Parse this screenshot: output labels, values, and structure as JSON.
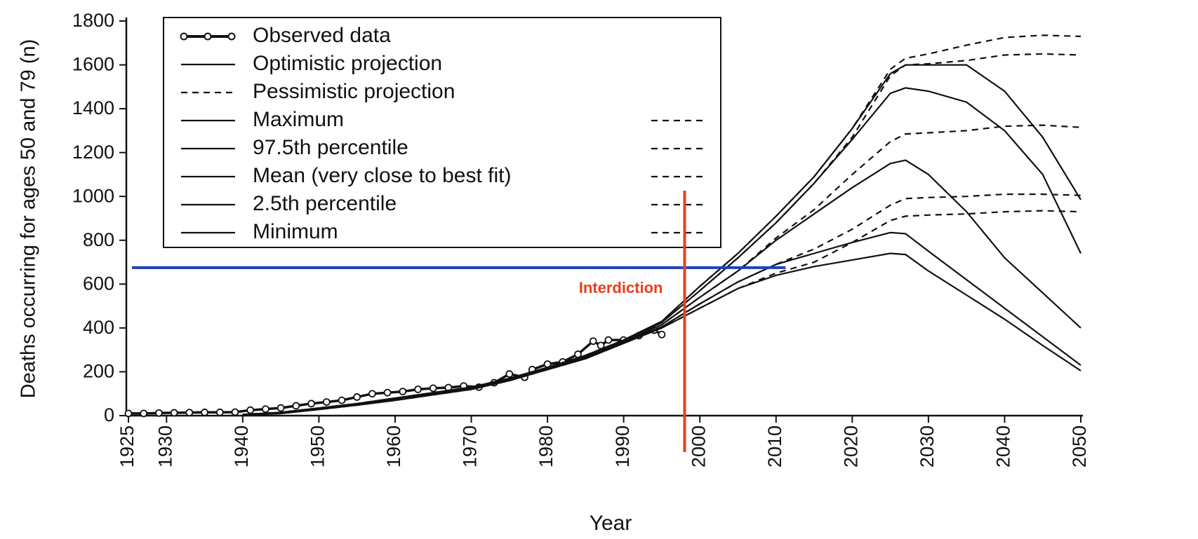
{
  "chart_data": {
    "type": "line",
    "xlabel": "Year",
    "ylabel": "Deaths occurring for ages 50 and 79 (n)",
    "xlim": [
      1925,
      2050
    ],
    "ylim": [
      0,
      1800
    ],
    "xticks": [
      1925,
      1930,
      1940,
      1950,
      1960,
      1970,
      1980,
      1990,
      2000,
      2010,
      2020,
      2030,
      2040,
      2050
    ],
    "yticks": [
      0,
      200,
      400,
      600,
      800,
      1000,
      1200,
      1400,
      1600,
      1800
    ],
    "color": "#111111",
    "legend": [
      "Observed data",
      "Optimistic projection",
      "Pessimistic projection",
      "Maximum",
      "97.5th percentile",
      "Mean (very close to best fit)",
      "2.5th percentile",
      "Minimum"
    ],
    "series": [
      {
        "legend_entry": 0,
        "markers": true,
        "x": [
          1925,
          1927,
          1929,
          1931,
          1933,
          1935,
          1937,
          1939,
          1941,
          1943,
          1945,
          1947,
          1949,
          1951,
          1953,
          1955,
          1957,
          1959,
          1961,
          1963,
          1965,
          1967,
          1969,
          1971,
          1973,
          1975,
          1977,
          1978,
          1980,
          1982,
          1984,
          1986,
          1987,
          1988,
          1990,
          1992,
          1994,
          1995
        ],
        "values": [
          10,
          10,
          12,
          13,
          14,
          15,
          15,
          16,
          25,
          30,
          35,
          45,
          55,
          62,
          70,
          85,
          100,
          105,
          110,
          120,
          125,
          128,
          135,
          130,
          150,
          190,
          175,
          210,
          235,
          245,
          280,
          340,
          320,
          345,
          345,
          365,
          390,
          370
        ]
      },
      {
        "legend_entry": 3,
        "dash": false,
        "x": [
          1940,
          1945,
          1950,
          1955,
          1960,
          1965,
          1970,
          1975,
          1980,
          1985,
          1990,
          1995,
          2000,
          2005,
          2010,
          2015,
          2020,
          2025,
          2027,
          2030,
          2035,
          2040,
          2045,
          2050
        ],
        "values": [
          5,
          15,
          35,
          55,
          80,
          105,
          130,
          170,
          220,
          275,
          345,
          430,
          590,
          740,
          910,
          1090,
          1310,
          1560,
          1600,
          1600,
          1600,
          1480,
          1270,
          985
        ]
      },
      {
        "legend_entry": 3,
        "dash": true,
        "x": [
          1940,
          1945,
          1950,
          1955,
          1960,
          1965,
          1970,
          1975,
          1980,
          1985,
          1990,
          1995,
          2000,
          2005,
          2010,
          2015,
          2020,
          2025,
          2027,
          2030,
          2035,
          2040,
          2045,
          2050
        ],
        "values": [
          5,
          15,
          35,
          55,
          80,
          105,
          130,
          170,
          220,
          275,
          345,
          430,
          590,
          740,
          910,
          1090,
          1310,
          1580,
          1630,
          1650,
          1690,
          1725,
          1735,
          1730
        ]
      },
      {
        "legend_entry": 4,
        "dash": false,
        "x": [
          1940,
          1945,
          1950,
          1955,
          1960,
          1965,
          1970,
          1975,
          1980,
          1985,
          1990,
          1995,
          2000,
          2005,
          2010,
          2015,
          2020,
          2025,
          2027,
          2030,
          2035,
          2040,
          2045,
          2050
        ],
        "values": [
          5,
          14,
          33,
          53,
          78,
          102,
          128,
          168,
          218,
          272,
          340,
          425,
          570,
          720,
          880,
          1060,
          1260,
          1470,
          1495,
          1480,
          1430,
          1300,
          1100,
          740
        ]
      },
      {
        "legend_entry": 4,
        "dash": true,
        "x": [
          1940,
          1945,
          1950,
          1955,
          1960,
          1965,
          1970,
          1975,
          1980,
          1985,
          1990,
          1995,
          2000,
          2005,
          2010,
          2015,
          2020,
          2025,
          2027,
          2030,
          2035,
          2040,
          2045,
          2050
        ],
        "values": [
          5,
          14,
          33,
          53,
          78,
          102,
          128,
          168,
          218,
          272,
          340,
          425,
          570,
          720,
          880,
          1060,
          1270,
          1550,
          1600,
          1605,
          1620,
          1645,
          1650,
          1645
        ]
      },
      {
        "legend_entry": 5,
        "dash": false,
        "x": [
          1940,
          1945,
          1950,
          1955,
          1960,
          1965,
          1970,
          1975,
          1980,
          1985,
          1990,
          1995,
          2000,
          2005,
          2010,
          2015,
          2020,
          2025,
          2027,
          2030,
          2035,
          2040,
          2045,
          2050
        ],
        "values": [
          4,
          12,
          31,
          51,
          75,
          100,
          125,
          165,
          215,
          268,
          335,
          415,
          540,
          660,
          800,
          920,
          1040,
          1150,
          1165,
          1100,
          930,
          720,
          560,
          400
        ]
      },
      {
        "legend_entry": 5,
        "dash": true,
        "x": [
          1940,
          1945,
          1950,
          1955,
          1960,
          1965,
          1970,
          1975,
          1980,
          1985,
          1990,
          1995,
          2000,
          2005,
          2010,
          2015,
          2020,
          2025,
          2027,
          2030,
          2035,
          2040,
          2045,
          2050
        ],
        "values": [
          4,
          12,
          31,
          51,
          75,
          100,
          125,
          165,
          215,
          268,
          335,
          415,
          540,
          660,
          810,
          940,
          1100,
          1250,
          1285,
          1290,
          1300,
          1320,
          1325,
          1315
        ]
      },
      {
        "legend_entry": 6,
        "dash": false,
        "x": [
          1940,
          1945,
          1950,
          1955,
          1960,
          1965,
          1970,
          1975,
          1980,
          1985,
          1990,
          1995,
          2000,
          2005,
          2010,
          2015,
          2020,
          2025,
          2027,
          2030,
          2035,
          2040,
          2045,
          2050
        ],
        "values": [
          3,
          11,
          29,
          49,
          72,
          97,
          122,
          162,
          212,
          263,
          332,
          405,
          510,
          610,
          690,
          740,
          790,
          835,
          830,
          750,
          620,
          490,
          360,
          230
        ]
      },
      {
        "legend_entry": 6,
        "dash": true,
        "x": [
          1940,
          1945,
          1950,
          1955,
          1960,
          1965,
          1970,
          1975,
          1980,
          1985,
          1990,
          1995,
          2000,
          2005,
          2010,
          2015,
          2020,
          2025,
          2027,
          2030,
          2035,
          2040,
          2045,
          2050
        ],
        "values": [
          3,
          11,
          29,
          49,
          72,
          97,
          122,
          162,
          212,
          263,
          332,
          405,
          510,
          610,
          690,
          760,
          850,
          960,
          990,
          995,
          1000,
          1010,
          1010,
          1005
        ]
      },
      {
        "legend_entry": 7,
        "dash": false,
        "x": [
          1940,
          1945,
          1950,
          1955,
          1960,
          1965,
          1970,
          1975,
          1980,
          1985,
          1990,
          1995,
          2000,
          2005,
          2010,
          2015,
          2020,
          2025,
          2027,
          2030,
          2035,
          2040,
          2045,
          2050
        ],
        "values": [
          3,
          10,
          28,
          48,
          70,
          95,
          120,
          160,
          210,
          260,
          330,
          400,
          490,
          580,
          640,
          680,
          710,
          740,
          735,
          660,
          550,
          440,
          320,
          205
        ]
      },
      {
        "legend_entry": 7,
        "dash": true,
        "x": [
          1940,
          1945,
          1950,
          1955,
          1960,
          1965,
          1970,
          1975,
          1980,
          1985,
          1990,
          1995,
          2000,
          2005,
          2010,
          2015,
          2020,
          2025,
          2027,
          2030,
          2035,
          2040,
          2045,
          2050
        ],
        "values": [
          3,
          10,
          28,
          48,
          70,
          95,
          120,
          160,
          210,
          260,
          330,
          400,
          490,
          580,
          650,
          700,
          790,
          890,
          910,
          915,
          920,
          930,
          935,
          930
        ]
      }
    ],
    "hline": {
      "value": 675,
      "color": "#1f3fbf"
    },
    "vline": {
      "value": 1998,
      "color": "#e8401c"
    },
    "annotations": [
      {
        "text": "Interdiction",
        "color": "#e8401c"
      }
    ]
  }
}
